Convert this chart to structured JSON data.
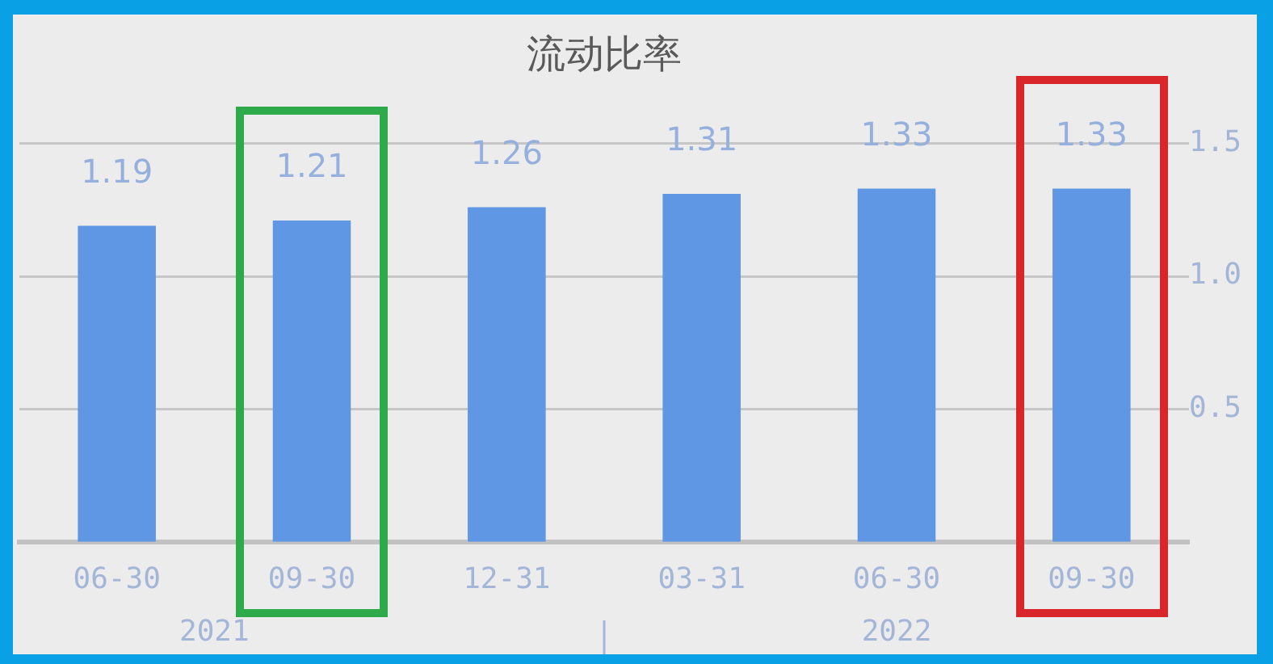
{
  "chart_data": {
    "type": "bar",
    "title": "流动比率",
    "categories": [
      "06-30",
      "09-30",
      "12-31",
      "03-31",
      "06-30",
      "09-30"
    ],
    "values": [
      1.19,
      1.21,
      1.26,
      1.31,
      1.33,
      1.33
    ],
    "color": "#5f97e5",
    "ylim": [
      0,
      1.5
    ],
    "yticks": [
      0.5,
      {
        "value": 1,
        "label": "1.0"
      },
      1.5
    ],
    "grid": "y",
    "data_labels": true,
    "annotations": [
      "2021",
      "2022"
    ]
  }
}
